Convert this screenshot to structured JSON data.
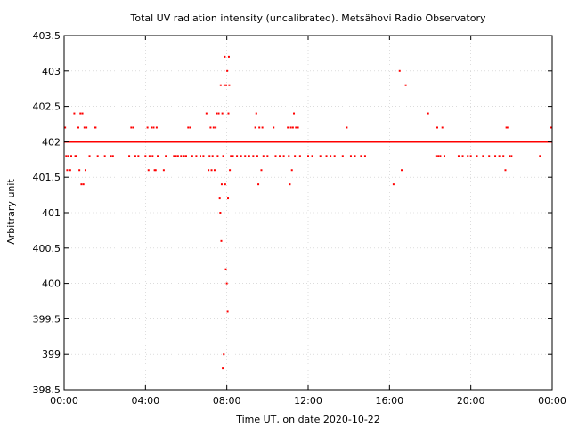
{
  "chart_data": {
    "type": "scatter",
    "title": "Total UV radiation intensity (uncalibrated). Metsähovi Radio Observatory",
    "xlabel": "Time UT, on date 2020-10-22",
    "ylabel": "Arbitrary unit",
    "xlim": [
      0,
      24
    ],
    "ylim": [
      398.5,
      403.5
    ],
    "x_ticks": [
      {
        "value": 0,
        "label": "00:00"
      },
      {
        "value": 4,
        "label": "04:00"
      },
      {
        "value": 8,
        "label": "08:00"
      },
      {
        "value": 12,
        "label": "12:00"
      },
      {
        "value": 16,
        "label": "16:00"
      },
      {
        "value": 20,
        "label": "20:00"
      },
      {
        "value": 24,
        "label": "00:00"
      }
    ],
    "y_ticks": [
      {
        "value": 398.5,
        "label": "398.5"
      },
      {
        "value": 399,
        "label": "399"
      },
      {
        "value": 399.5,
        "label": "399.5"
      },
      {
        "value": 400,
        "label": "400"
      },
      {
        "value": 400.5,
        "label": "400.5"
      },
      {
        "value": 401,
        "label": "401"
      },
      {
        "value": 401.5,
        "label": "401.5"
      },
      {
        "value": 402,
        "label": "402"
      },
      {
        "value": 402.5,
        "label": "402.5"
      },
      {
        "value": 403,
        "label": "403"
      },
      {
        "value": 403.5,
        "label": "403.5"
      }
    ],
    "grid": true,
    "marker_color": "#ff0000",
    "baseline_value": 402,
    "baseline_range": [
      0,
      24
    ],
    "points": [
      [
        0.05,
        402.2
      ],
      [
        0.1,
        401.8
      ],
      [
        0.15,
        401.6
      ],
      [
        0.2,
        401.8
      ],
      [
        0.3,
        401.6
      ],
      [
        0.35,
        401.8
      ],
      [
        0.5,
        402.4
      ],
      [
        0.55,
        401.8
      ],
      [
        0.6,
        401.8
      ],
      [
        0.7,
        402.2
      ],
      [
        0.75,
        401.6
      ],
      [
        0.8,
        402.4
      ],
      [
        0.85,
        401.4
      ],
      [
        0.9,
        402.4
      ],
      [
        0.95,
        401.4
      ],
      [
        1.0,
        402.2
      ],
      [
        1.05,
        401.6
      ],
      [
        1.1,
        402.2
      ],
      [
        1.25,
        401.8
      ],
      [
        1.5,
        402.2
      ],
      [
        1.55,
        402.2
      ],
      [
        1.65,
        401.8
      ],
      [
        2.0,
        401.8
      ],
      [
        2.3,
        401.8
      ],
      [
        2.4,
        401.8
      ],
      [
        3.2,
        401.8
      ],
      [
        3.3,
        402.2
      ],
      [
        3.4,
        402.2
      ],
      [
        3.5,
        401.8
      ],
      [
        3.65,
        401.8
      ],
      [
        4.0,
        401.8
      ],
      [
        4.1,
        402.2
      ],
      [
        4.15,
        401.6
      ],
      [
        4.2,
        401.8
      ],
      [
        4.3,
        402.2
      ],
      [
        4.35,
        401.8
      ],
      [
        4.4,
        402.2
      ],
      [
        4.45,
        401.6
      ],
      [
        4.5,
        401.6
      ],
      [
        4.55,
        402.2
      ],
      [
        4.6,
        401.8
      ],
      [
        4.9,
        401.6
      ],
      [
        5.0,
        401.8
      ],
      [
        5.4,
        401.8
      ],
      [
        5.5,
        401.8
      ],
      [
        5.6,
        401.8
      ],
      [
        5.75,
        401.8
      ],
      [
        5.9,
        401.8
      ],
      [
        6.0,
        401.8
      ],
      [
        6.1,
        402.2
      ],
      [
        6.2,
        402.2
      ],
      [
        6.3,
        401.8
      ],
      [
        6.5,
        401.8
      ],
      [
        6.7,
        401.8
      ],
      [
        6.85,
        401.8
      ],
      [
        7.0,
        402.4
      ],
      [
        7.1,
        401.6
      ],
      [
        7.15,
        401.8
      ],
      [
        7.2,
        402.2
      ],
      [
        7.25,
        401.6
      ],
      [
        7.3,
        401.8
      ],
      [
        7.35,
        402.2
      ],
      [
        7.4,
        401.6
      ],
      [
        7.45,
        402.2
      ],
      [
        7.5,
        402.4
      ],
      [
        7.55,
        401.8
      ],
      [
        7.6,
        402.4
      ],
      [
        7.65,
        401.2
      ],
      [
        7.68,
        401.0
      ],
      [
        7.7,
        402.8
      ],
      [
        7.73,
        400.6
      ],
      [
        7.75,
        401.4
      ],
      [
        7.78,
        402.4
      ],
      [
        7.8,
        398.8
      ],
      [
        7.82,
        401.8
      ],
      [
        7.85,
        399.0
      ],
      [
        7.88,
        402.8
      ],
      [
        7.9,
        403.2
      ],
      [
        7.92,
        401.4
      ],
      [
        7.95,
        400.2
      ],
      [
        7.97,
        402.8
      ],
      [
        8.0,
        400.0
      ],
      [
        8.02,
        403.0
      ],
      [
        8.04,
        399.6
      ],
      [
        8.06,
        401.2
      ],
      [
        8.08,
        402.4
      ],
      [
        8.1,
        403.2
      ],
      [
        8.12,
        402.8
      ],
      [
        8.15,
        401.6
      ],
      [
        8.2,
        401.8
      ],
      [
        8.3,
        401.8
      ],
      [
        8.5,
        401.8
      ],
      [
        8.7,
        401.8
      ],
      [
        8.9,
        401.8
      ],
      [
        9.1,
        401.8
      ],
      [
        9.3,
        401.8
      ],
      [
        9.4,
        402.2
      ],
      [
        9.45,
        402.4
      ],
      [
        9.5,
        401.8
      ],
      [
        9.55,
        401.4
      ],
      [
        9.6,
        402.2
      ],
      [
        9.7,
        401.6
      ],
      [
        9.75,
        402.2
      ],
      [
        9.8,
        401.8
      ],
      [
        10.0,
        401.8
      ],
      [
        10.3,
        402.2
      ],
      [
        10.4,
        401.8
      ],
      [
        10.6,
        401.8
      ],
      [
        10.8,
        401.8
      ],
      [
        11.0,
        402.2
      ],
      [
        11.05,
        401.8
      ],
      [
        11.1,
        401.4
      ],
      [
        11.15,
        402.2
      ],
      [
        11.2,
        401.6
      ],
      [
        11.25,
        402.2
      ],
      [
        11.3,
        402.4
      ],
      [
        11.35,
        401.8
      ],
      [
        11.4,
        402.2
      ],
      [
        11.5,
        402.2
      ],
      [
        11.6,
        401.8
      ],
      [
        12.0,
        401.8
      ],
      [
        12.2,
        401.8
      ],
      [
        12.6,
        401.8
      ],
      [
        12.9,
        401.8
      ],
      [
        13.1,
        401.8
      ],
      [
        13.3,
        401.8
      ],
      [
        13.7,
        401.8
      ],
      [
        13.9,
        402.2
      ],
      [
        14.1,
        401.8
      ],
      [
        14.3,
        401.8
      ],
      [
        14.6,
        401.8
      ],
      [
        14.8,
        401.8
      ],
      [
        16.2,
        401.4
      ],
      [
        16.5,
        403.0
      ],
      [
        16.6,
        401.6
      ],
      [
        16.8,
        402.8
      ],
      [
        17.9,
        402.4
      ],
      [
        18.3,
        401.8
      ],
      [
        18.35,
        402.2
      ],
      [
        18.4,
        401.8
      ],
      [
        18.5,
        401.8
      ],
      [
        18.6,
        402.2
      ],
      [
        18.7,
        401.8
      ],
      [
        19.4,
        401.8
      ],
      [
        19.6,
        401.8
      ],
      [
        19.85,
        401.8
      ],
      [
        20.0,
        401.8
      ],
      [
        20.3,
        401.8
      ],
      [
        20.6,
        401.8
      ],
      [
        20.9,
        401.8
      ],
      [
        21.2,
        401.8
      ],
      [
        21.4,
        401.8
      ],
      [
        21.6,
        401.8
      ],
      [
        21.7,
        401.6
      ],
      [
        21.75,
        402.2
      ],
      [
        21.8,
        402.2
      ],
      [
        21.9,
        401.8
      ],
      [
        22.0,
        401.8
      ],
      [
        23.4,
        401.8
      ],
      [
        23.95,
        402.2
      ]
    ]
  }
}
